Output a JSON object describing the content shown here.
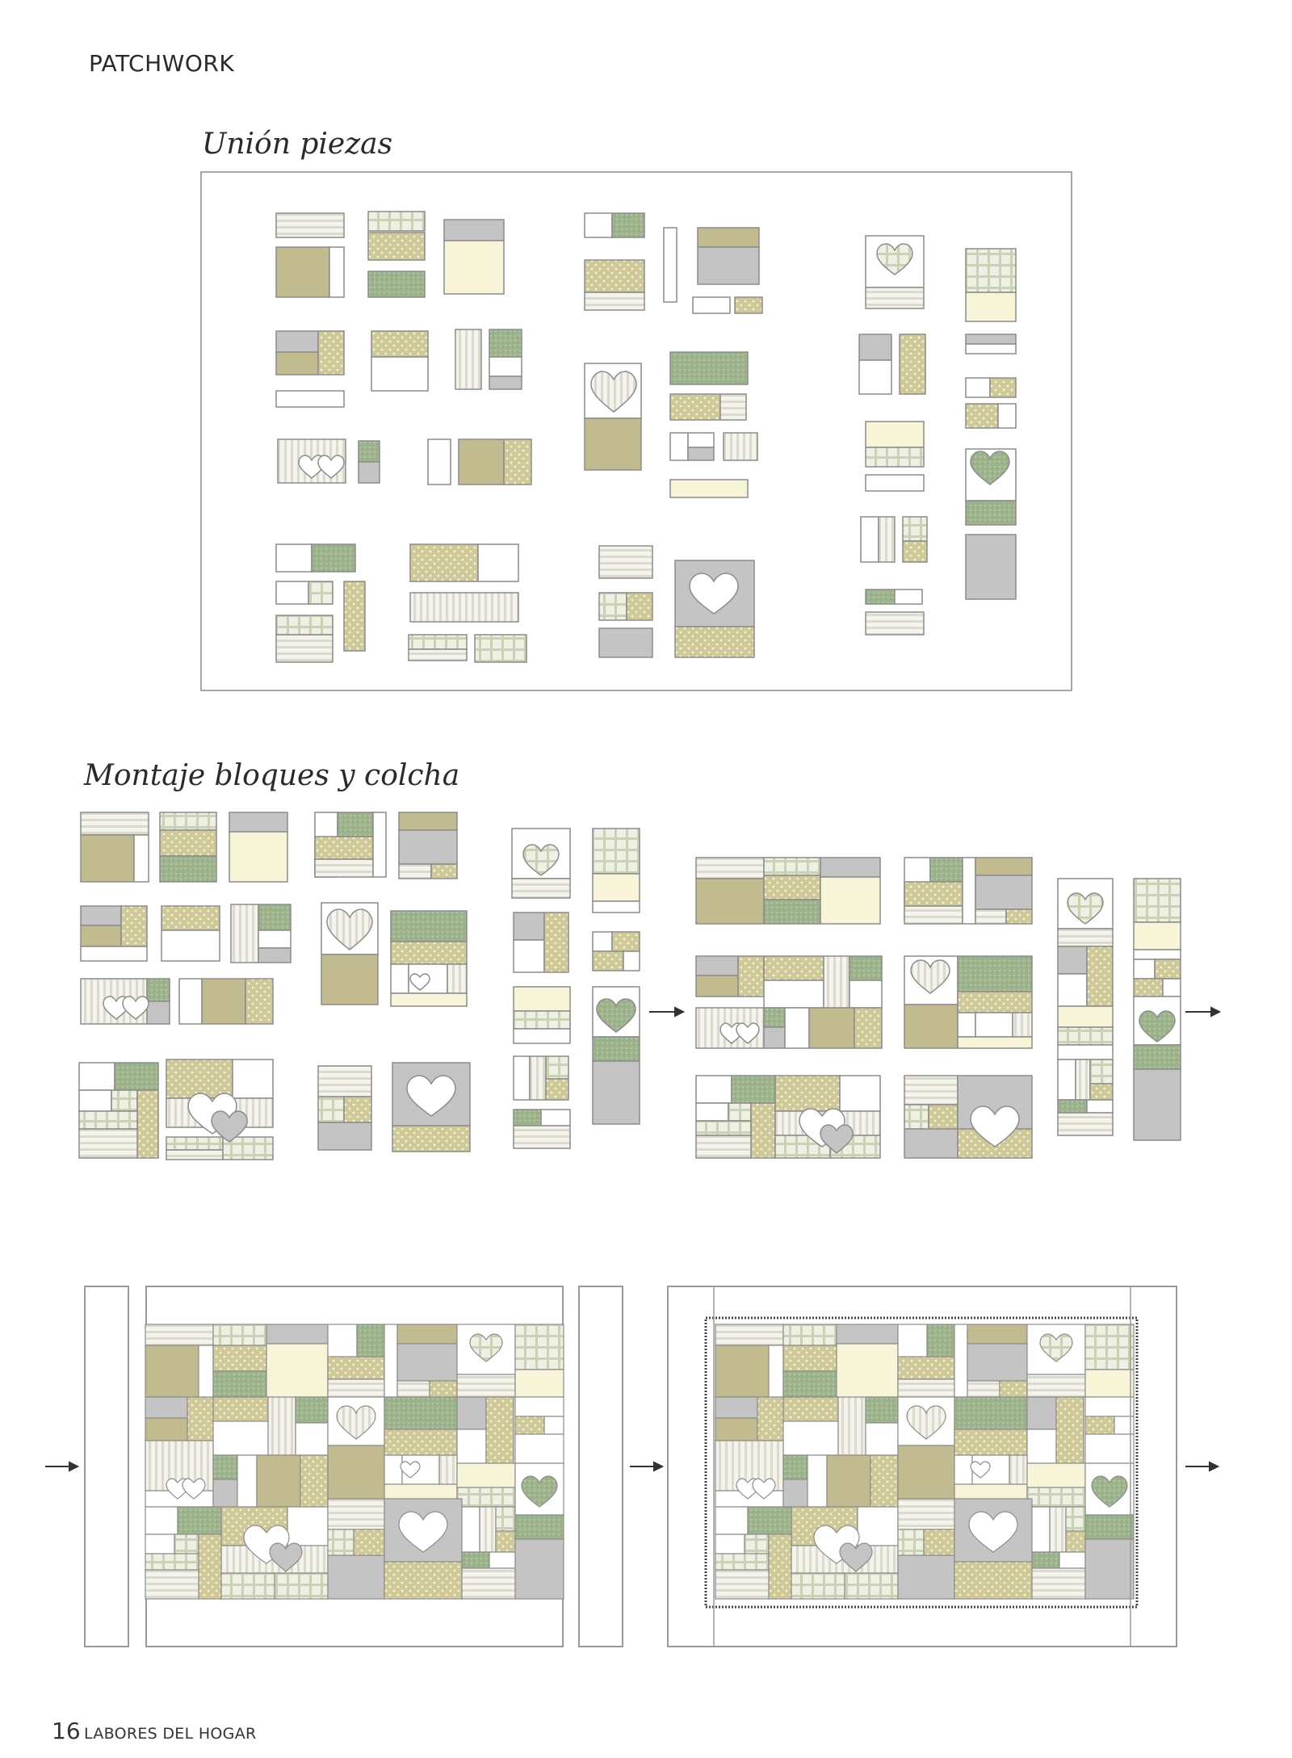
{
  "header": {
    "section_label": "PATCHWORK"
  },
  "sections": {
    "piece_union": {
      "title": "Unión piezas"
    },
    "blocks_assembly": {
      "title": "Montaje bloques y colcha"
    }
  },
  "footer": {
    "page_number": "16",
    "magazine": "LABORES DEL HOGAR"
  },
  "colors": {
    "khaki": "#c2bb8f",
    "green_mottled": "#9db48c",
    "polka": "#cfc897",
    "cream": "#f7f4d8",
    "gray": "#c4c4c4",
    "stripe": "#ebe9dd",
    "plaid": "#e6ead8",
    "white": "#ffffff",
    "outline": "#8c8c8c"
  },
  "icons": [
    "arrow-right-icon",
    "heart-icon"
  ]
}
